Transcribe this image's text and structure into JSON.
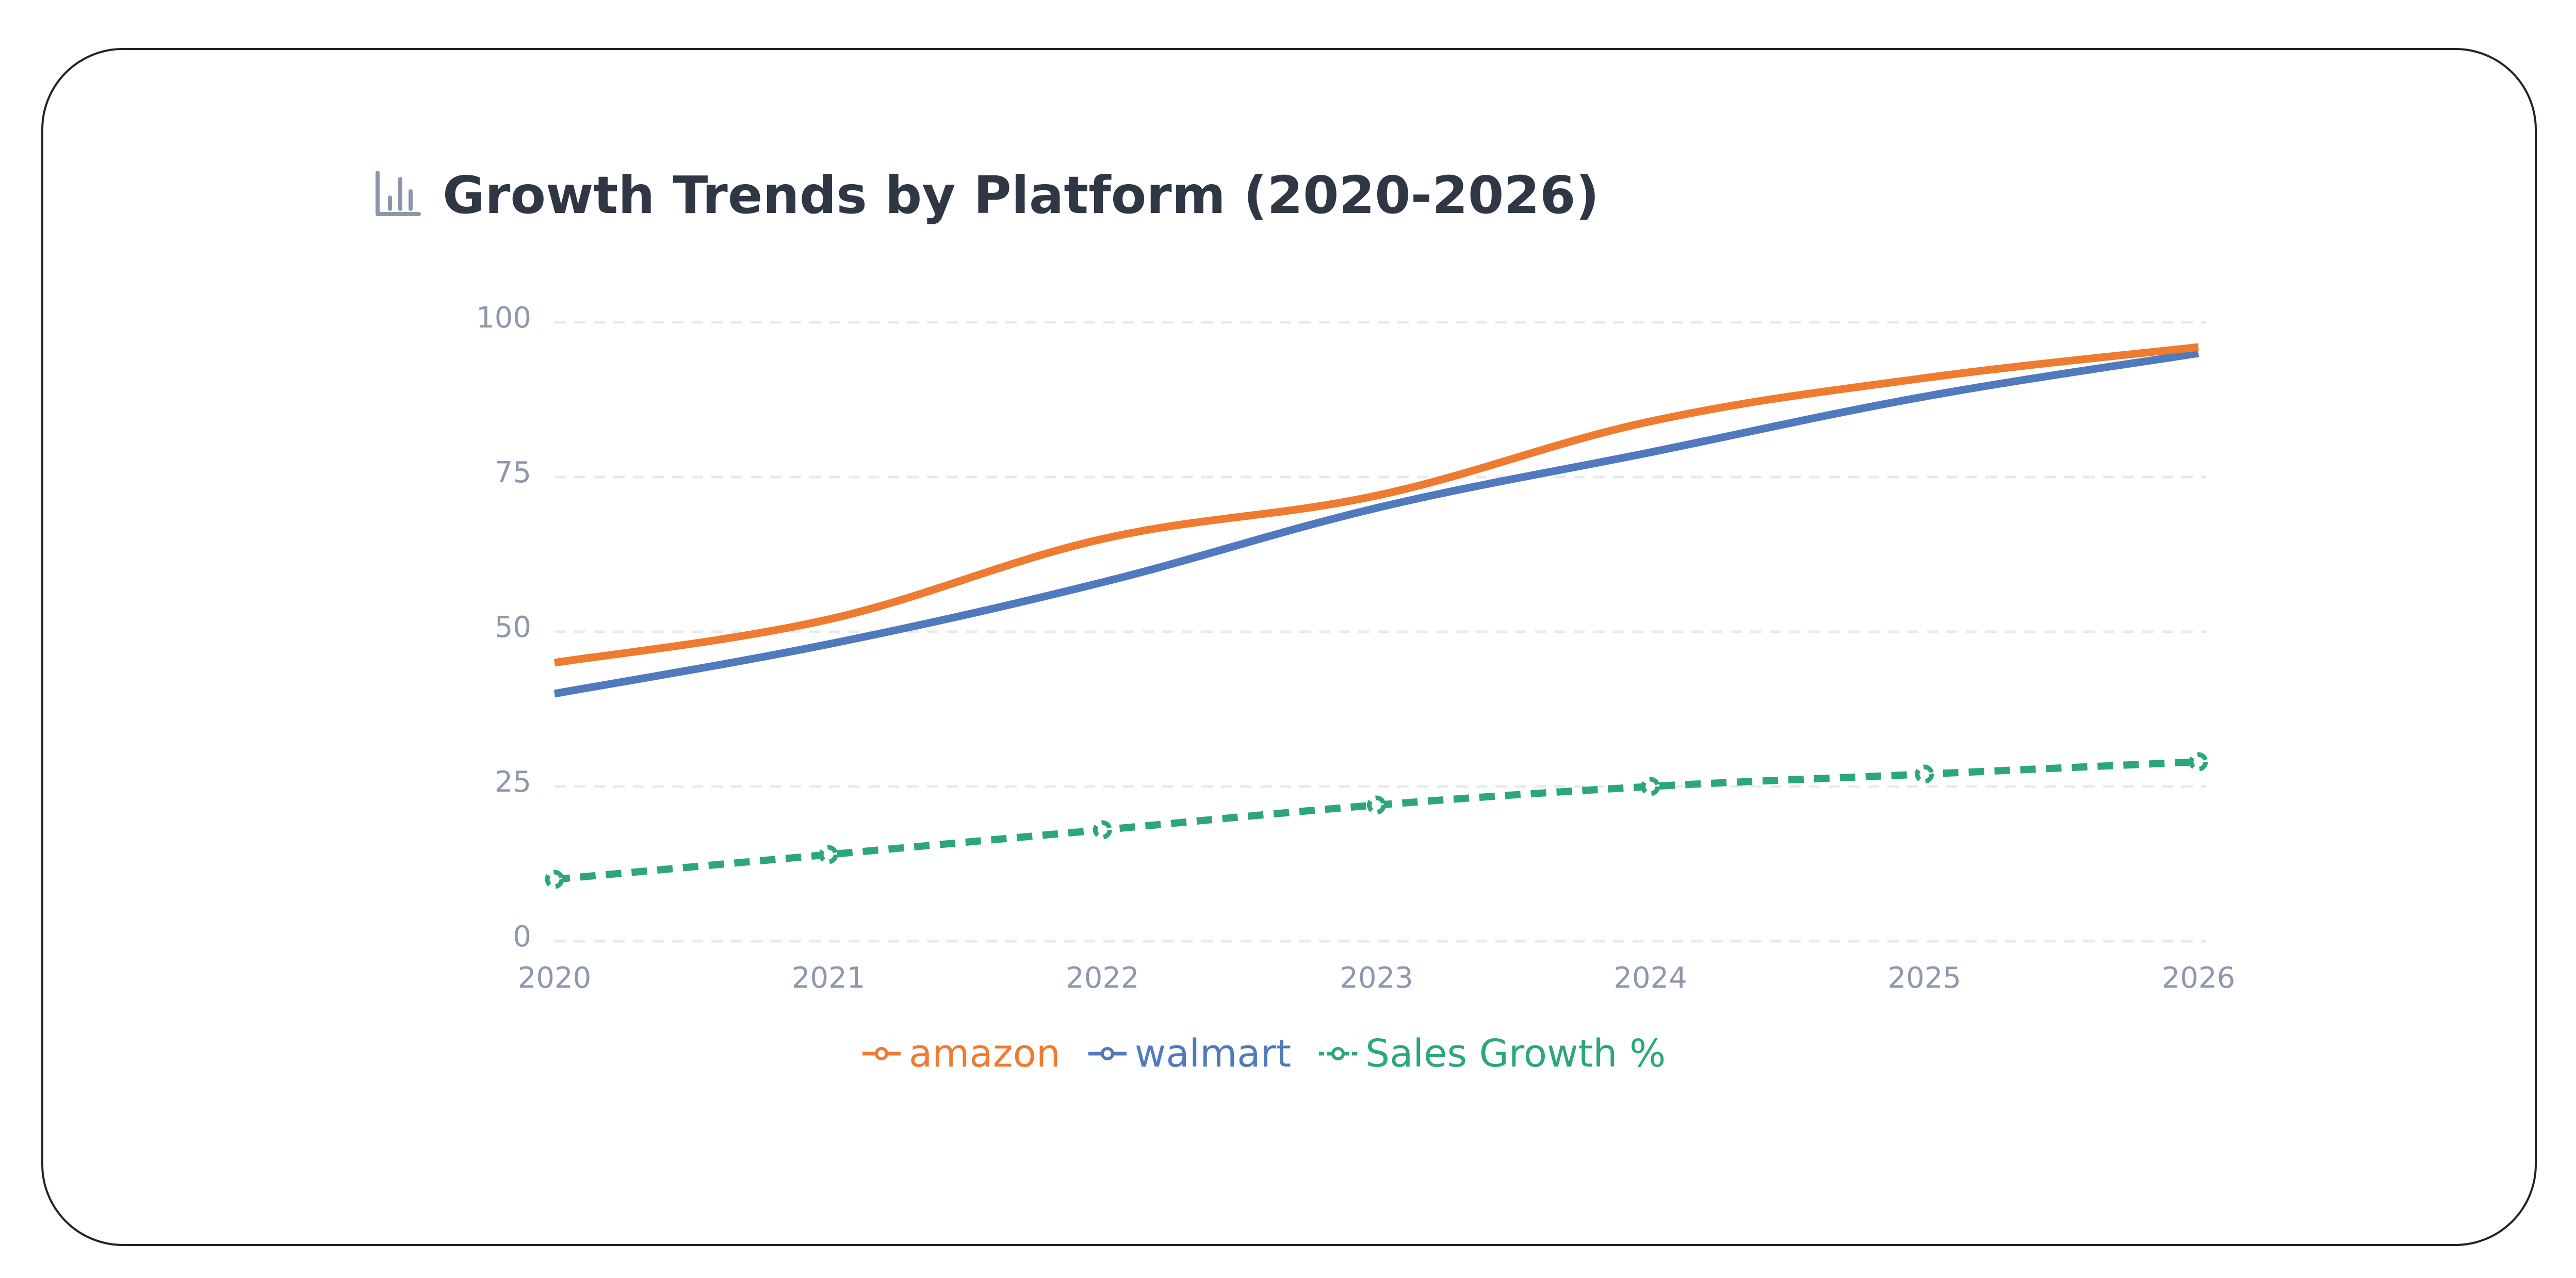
{
  "chart_data": {
    "type": "line",
    "title": "Growth Trends by Platform (2020-2026)",
    "categories": [
      "2020",
      "2021",
      "2022",
      "2023",
      "2024",
      "2025",
      "2026"
    ],
    "ylim": [
      0,
      100
    ],
    "yticks": [
      "0",
      "25",
      "50",
      "75",
      "100"
    ],
    "grid": true,
    "legend_position": "bottom",
    "xlabel": "",
    "ylabel": "",
    "series": [
      {
        "name": "amazon",
        "color": "#ee7b2f",
        "style": "solid",
        "values": [
          45,
          52,
          65,
          72,
          84,
          91,
          96
        ]
      },
      {
        "name": "walmart",
        "color": "#5079be",
        "style": "solid",
        "values": [
          40,
          48,
          58,
          70,
          79,
          88,
          95
        ]
      },
      {
        "name": "Sales Growth %",
        "color": "#2ba77a",
        "style": "dashed",
        "values": [
          10,
          14,
          18,
          22,
          25,
          27,
          29
        ]
      }
    ]
  },
  "icons": {
    "title": "bar-chart-icon"
  }
}
